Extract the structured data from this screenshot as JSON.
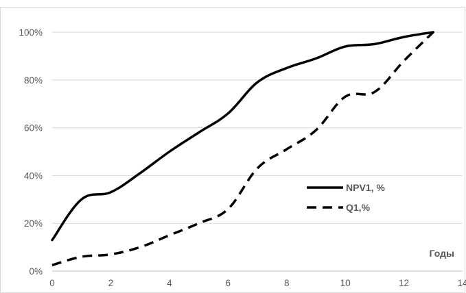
{
  "chart_data": {
    "type": "line",
    "title": "",
    "xlabel": "Годы",
    "ylabel": "",
    "xlim": [
      0,
      14
    ],
    "ylim": [
      0,
      100
    ],
    "x_ticks": [
      0,
      2,
      4,
      6,
      8,
      10,
      12,
      14
    ],
    "y_ticks": [
      0,
      20,
      40,
      60,
      80,
      100
    ],
    "x_tick_labels": [
      "0",
      "2",
      "4",
      "6",
      "8",
      "10",
      "12",
      "14"
    ],
    "y_tick_labels": [
      "0%",
      "20%",
      "40%",
      "60%",
      "80%",
      "100%"
    ],
    "grid": "horizontal",
    "legend_position": "right",
    "series": [
      {
        "name": "NPV1, %",
        "style": "solid",
        "color": "#000000",
        "x": [
          0,
          1,
          2,
          3,
          4,
          5,
          6,
          7,
          8,
          9,
          10,
          11,
          12,
          13
        ],
        "values": [
          13,
          30,
          33,
          41,
          50,
          58,
          66,
          79,
          85,
          89,
          94,
          95,
          98,
          100
        ]
      },
      {
        "name": "Q1,%",
        "style": "dashed",
        "color": "#000000",
        "x": [
          0,
          1,
          2,
          3,
          4,
          5,
          6,
          7,
          8,
          9,
          10,
          11,
          12,
          13
        ],
        "values": [
          2.5,
          6,
          7,
          10,
          15,
          20,
          26,
          43,
          51,
          59,
          73,
          75,
          88,
          100
        ]
      }
    ]
  }
}
